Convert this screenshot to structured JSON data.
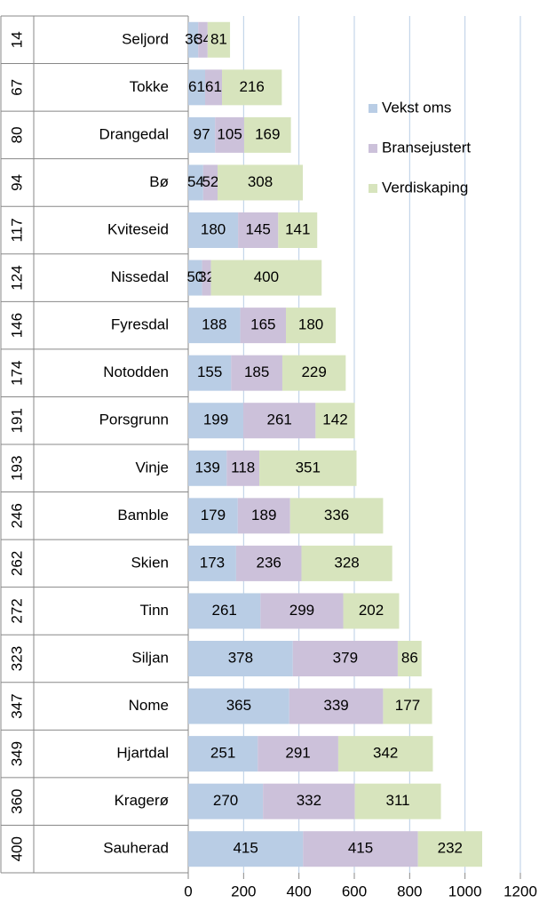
{
  "chart_data": {
    "type": "bar",
    "orientation": "horizontal",
    "stacked": true,
    "category_groups": [
      14,
      67,
      80,
      94,
      117,
      124,
      146,
      174,
      191,
      193,
      246,
      262,
      272,
      323,
      347,
      349,
      360,
      400
    ],
    "categories": [
      "Seljord",
      "Tokke",
      "Drangedal",
      "Bø",
      "Kviteseid",
      "Nissedal",
      "Fyresdal",
      "Notodden",
      "Porsgrunn",
      "Vinje",
      "Bamble",
      "Skien",
      "Tinn",
      "Siljan",
      "Nome",
      "Hjartdal",
      "Kragerø",
      "Sauherad"
    ],
    "series": [
      {
        "name": "Vekst oms",
        "color": "#b9cde5",
        "values": [
          36,
          61,
          97,
          54,
          180,
          50,
          188,
          155,
          199,
          139,
          179,
          173,
          261,
          378,
          365,
          251,
          270,
          415
        ]
      },
      {
        "name": "Bransejustert",
        "color": "#ccc1da",
        "values": [
          34,
          61,
          105,
          52,
          145,
          32,
          165,
          185,
          261,
          118,
          189,
          236,
          299,
          379,
          339,
          291,
          332,
          415
        ]
      },
      {
        "name": "Verdiskaping",
        "color": "#d7e4bd",
        "values": [
          81,
          216,
          169,
          308,
          141,
          400,
          180,
          229,
          142,
          351,
          336,
          328,
          202,
          86,
          177,
          342,
          311,
          232
        ]
      }
    ],
    "xlim": [
      0,
      1200
    ],
    "xticks": [
      0,
      200,
      400,
      600,
      800,
      1000,
      1200
    ],
    "grid": true,
    "legend": "right"
  }
}
